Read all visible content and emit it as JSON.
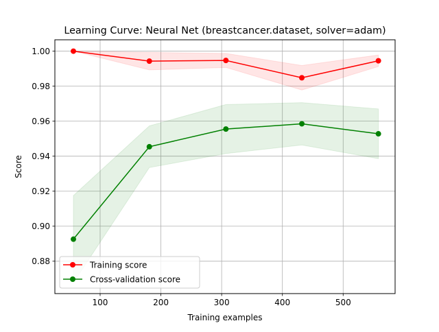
{
  "chart_data": {
    "type": "line",
    "title": "Learning Curve: Neural Net (breastcancer.dataset, solver=adam)",
    "xlabel": "Training examples",
    "ylabel": "Score",
    "xlim": [
      25.5,
      585.5
    ],
    "ylim": [
      0.8615,
      1.0065
    ],
    "xticks": [
      100,
      200,
      300,
      400,
      500
    ],
    "yticks": [
      0.88,
      0.9,
      0.92,
      0.94,
      0.96,
      0.98,
      1.0
    ],
    "ytick_labels": [
      "0.88",
      "0.90",
      "0.92",
      "0.94",
      "0.96",
      "0.98",
      "1.00"
    ],
    "grid": true,
    "legend_position": "lower-left",
    "x": [
      56,
      181,
      307,
      432,
      558
    ],
    "series": [
      {
        "name": "Training score",
        "color": "#ff0000",
        "marker": "circle",
        "values": [
          1.0,
          0.9943,
          0.9947,
          0.9848,
          0.9945
        ],
        "band_upper": [
          1.0,
          0.9993,
          0.9987,
          0.9918,
          0.9978
        ],
        "band_lower": [
          1.0,
          0.9893,
          0.9907,
          0.9778,
          0.9912
        ]
      },
      {
        "name": "Cross-validation score",
        "color": "#008000",
        "marker": "circle",
        "values": [
          0.8926,
          0.9454,
          0.9555,
          0.9585,
          0.9528
        ],
        "band_upper": [
          0.9175,
          0.9573,
          0.9695,
          0.9706,
          0.967
        ],
        "band_lower": [
          0.8677,
          0.9335,
          0.9415,
          0.9464,
          0.9386
        ]
      }
    ]
  }
}
